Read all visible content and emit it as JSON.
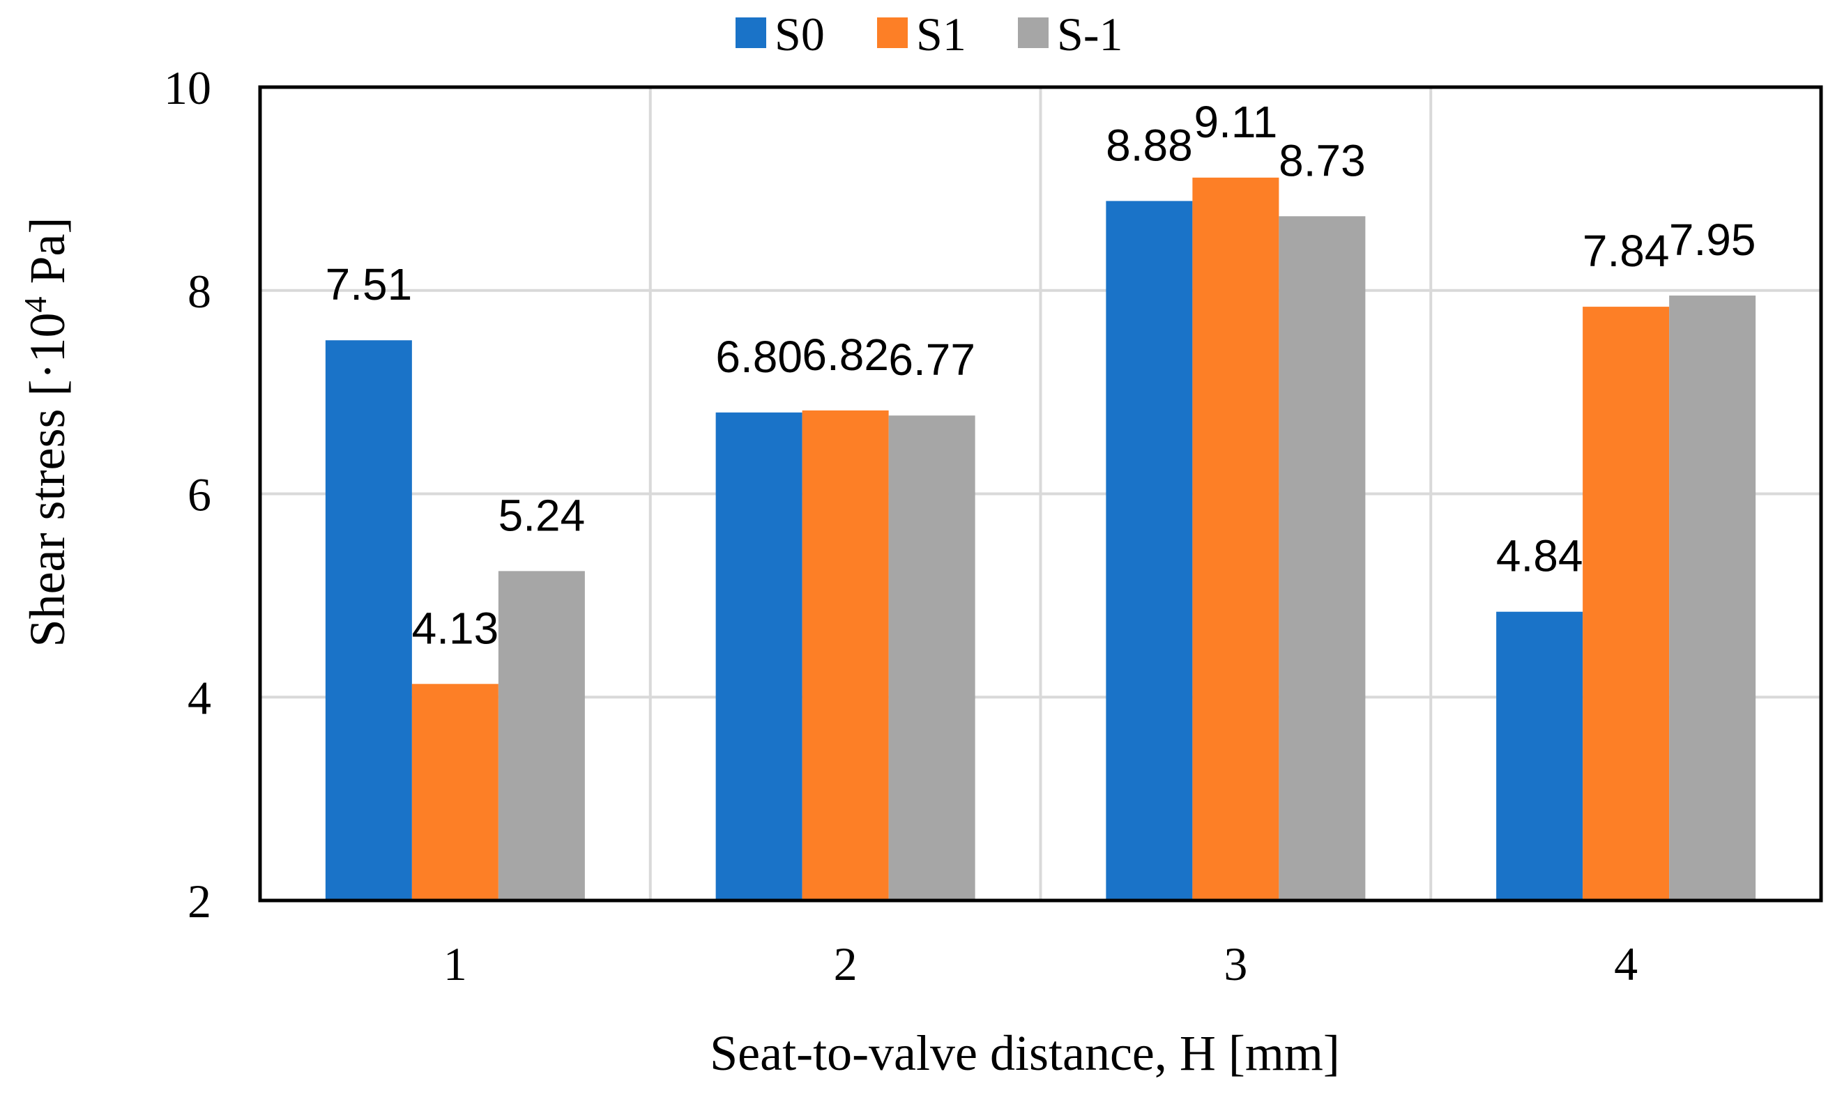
{
  "chart_data": {
    "type": "bar",
    "title": "",
    "xlabel": "Seat-to-valve distance, H [mm]",
    "ylabel": {
      "prefix": "Shear stress [·10",
      "exponent": "4",
      "suffix": " Pa]"
    },
    "categories": [
      "1",
      "2",
      "3",
      "4"
    ],
    "ylim": [
      2,
      10
    ],
    "yticks": [
      2,
      4,
      6,
      8,
      10
    ],
    "ytick_labels": [
      "2",
      "4",
      "6",
      "8",
      "10"
    ],
    "grid": true,
    "legend_position": "top-center",
    "series": [
      {
        "name": "S0",
        "color": "#1a73c8",
        "values": [
          7.51,
          6.8,
          8.88,
          4.84
        ],
        "labels": [
          "7.51",
          "6.80",
          "8.88",
          "4.84"
        ]
      },
      {
        "name": "S1",
        "color": "#fd7f26",
        "values": [
          4.13,
          6.82,
          9.11,
          7.84
        ],
        "labels": [
          "4.13",
          "6.82",
          "9.11",
          "7.84"
        ]
      },
      {
        "name": "S-1",
        "color": "#a6a6a6",
        "values": [
          5.24,
          6.77,
          8.73,
          7.95
        ],
        "labels": [
          "5.24",
          "6.77",
          "8.73",
          "7.95"
        ]
      }
    ]
  }
}
